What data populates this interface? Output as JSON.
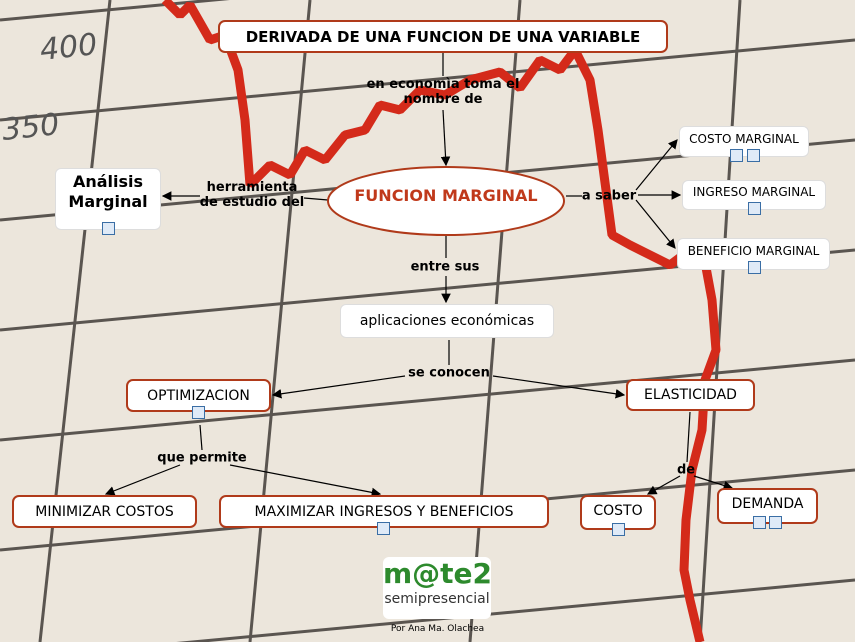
{
  "title": "DERIVADA DE UNA FUNCION DE UNA VARIABLE",
  "center": "FUNCION MARGINAL",
  "nodes": [
    "Análisis Marginal",
    "COSTO MARGINAL",
    "INGRESO MARGINAL",
    "BENEFICIO MARGINAL",
    "aplicaciones económicas",
    "OPTIMIZACION",
    "ELASTICIDAD",
    "MINIMIZAR COSTOS",
    "MAXIMIZAR INGRESOS Y BENEFICIOS",
    "COSTO",
    "DEMANDA"
  ],
  "links": [
    "en economìa toma el nombre de",
    "herramienta de estudio del",
    "a saber",
    "entre sus",
    "se conocen",
    "que permite",
    "de"
  ],
  "background_labels": [
    "400",
    "350"
  ],
  "logo": {
    "brand": "m@te2",
    "subtitle": "semipresencial"
  },
  "credit": "Por Ana Ma. Olachea"
}
